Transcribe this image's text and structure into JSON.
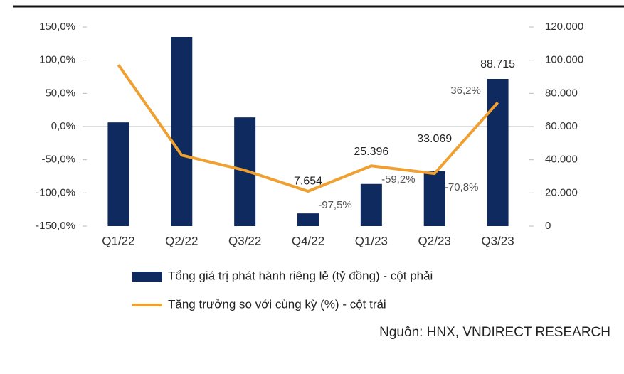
{
  "chart_data": {
    "type": "bar_line",
    "categories": [
      "Q1/22",
      "Q2/22",
      "Q3/22",
      "Q4/22",
      "Q1/23",
      "Q2/23",
      "Q3/23"
    ],
    "series": [
      {
        "name": "Tổng giá trị phát hành riêng lẻ (tỷ đồng) - cột phải",
        "type": "bar",
        "axis": "y2",
        "color": "#0f2a5e",
        "values": [
          62500,
          114000,
          65500,
          7654,
          25396,
          33069,
          88715
        ],
        "value_labels": [
          null,
          null,
          null,
          "7.654",
          "25.396",
          "33.069",
          "88.715"
        ]
      },
      {
        "name": "Tăng trưởng so với cùng kỳ (%) - cột trái",
        "type": "line",
        "axis": "y",
        "color": "#f0a030",
        "values": [
          93,
          -43,
          -66,
          -97.5,
          -59.2,
          -70.8,
          36.2
        ],
        "value_labels": [
          null,
          null,
          null,
          "-97,5%",
          "-59,2%",
          "-70,8%",
          "36,2%"
        ]
      }
    ],
    "ylim": [
      -150,
      150
    ],
    "yticks": [
      {
        "value": -150,
        "label": "-150,0%"
      },
      {
        "value": -100,
        "label": "-100,0%"
      },
      {
        "value": -50,
        "label": "-50,0%"
      },
      {
        "value": 0,
        "label": "0,0%"
      },
      {
        "value": 50,
        "label": "50,0%"
      },
      {
        "value": 100,
        "label": "100,0%"
      },
      {
        "value": 150,
        "label": "150,0%"
      }
    ],
    "y2lim": [
      0,
      120000
    ],
    "y2ticks": [
      0,
      {
        "value": 20000,
        "label": "20.000"
      },
      {
        "value": 40000,
        "label": "40.000"
      },
      {
        "value": 60000,
        "label": "60.000"
      },
      {
        "value": 80000,
        "label": "80.000"
      },
      {
        "value": 100000,
        "label": "100.000"
      },
      {
        "value": 120000,
        "label": "120.000"
      }
    ],
    "source": "Nguồn: HNX, VNDIRECT RESEARCH"
  }
}
